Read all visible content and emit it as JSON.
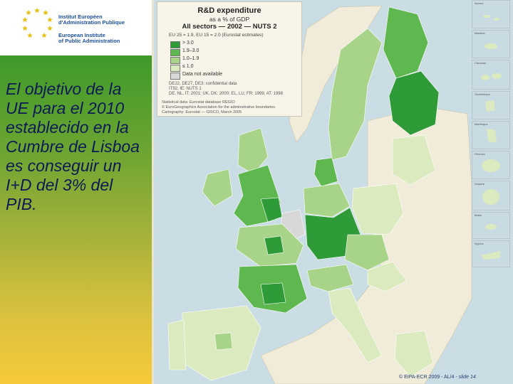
{
  "colors": {
    "dark_green": "#2f9a38",
    "mid_green": "#5fb84f",
    "light_green": "#a8d48a",
    "pale_green": "#dcebbf",
    "no_data": "#d8d8d8",
    "sea": "#cbdde4",
    "non_eu": "#f0ecd9"
  },
  "logo": {
    "line1": "Institut Européen",
    "line2": "d'Administration Publique",
    "line3": "European Institute",
    "line4": "of Public Administration",
    "icon": "eu-stars-icon"
  },
  "statement": "El objetivo de la UE para el 2010 establecido en la Cumbre de Lisboa es conseguir un I+D del 3% del PIB.",
  "map": {
    "title": "R&D expenditure",
    "subtitle": "as a % of GDP",
    "heading": "All sectors — 2002 — NUTS 2",
    "eu_avg": "EU 25 = 1.9, EU 15 = 2.0 (Eurostat estimates)",
    "legend": [
      {
        "label": "> 3.0",
        "color": "#2f9a38"
      },
      {
        "label": "1.9–3.0",
        "color": "#5fb84f"
      },
      {
        "label": "1.0–1.9",
        "color": "#a8d48a"
      },
      {
        "label": "≤ 1.0",
        "color": "#dcebbf"
      },
      {
        "label": "Data not available",
        "color": "#d8d8d8"
      }
    ],
    "note1": "DE22, DE27, DE3: confidential data",
    "note2": "IT92, IE: NUTS 1",
    "note3": "DE, NL, IT: 2001; UK, DK: 2000; EL, LU, FR: 1999; AT: 1998",
    "source1": "Statistical data: Eurostat database REGIO",
    "source2": "© EuroGeographics Association for the administrative boundaries",
    "source3": "Cartography: Eurostat — GISCO, March 2005",
    "insets": [
      "Açores",
      "Madeira",
      "Canarias",
      "Guadeloupe",
      "Martinique",
      "Réunion",
      "Guyane",
      "Malta",
      "Kýpros"
    ]
  },
  "footer": {
    "copyright": "© EIPA-ECR 2009 - AL/4 -",
    "slide": "slide 14"
  }
}
